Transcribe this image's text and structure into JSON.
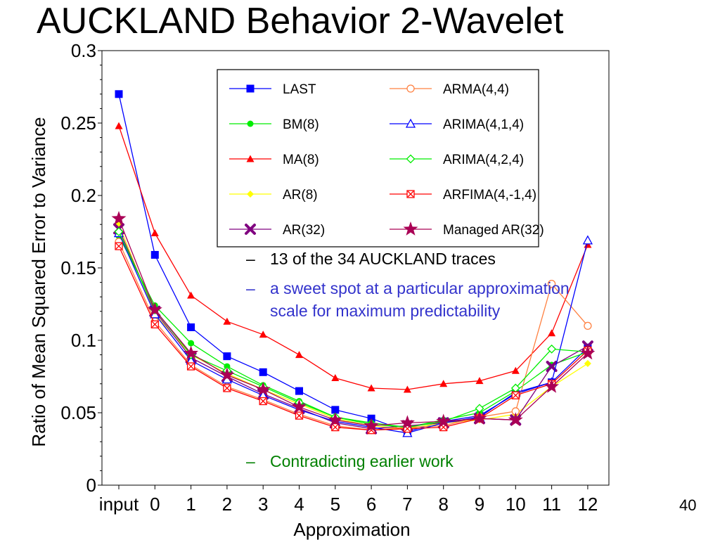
{
  "slide": {
    "title": "AUCKLAND Behavior 2-Wavelet",
    "page_number": "40",
    "bullets": [
      {
        "dash": "–",
        "text": "13 of the 34 AUCKLAND traces",
        "color": "#000000"
      },
      {
        "dash": "–",
        "text": "a sweet spot at a particular approximation scale for maximum predictability",
        "color": "#3333cc"
      },
      {
        "dash": "–",
        "text": "Contradicting earlier work",
        "color": "#008000"
      }
    ]
  },
  "chart_data": {
    "type": "line",
    "xlabel": "Approximation",
    "ylabel": "Ratio of Mean Squared Error to Variance",
    "categories": [
      "input",
      "0",
      "1",
      "2",
      "3",
      "4",
      "5",
      "6",
      "7",
      "8",
      "9",
      "10",
      "11",
      "12"
    ],
    "ylim": [
      0,
      0.3
    ],
    "yticks": [
      "0",
      "0.05",
      "0.1",
      "0.15",
      "0.2",
      "0.25",
      "0.3"
    ],
    "grid": false,
    "legend_position": "top-right",
    "series": [
      {
        "name": "LAST",
        "color": "#0000ff",
        "marker": "square-filled",
        "values": [
          0.27,
          0.159,
          0.109,
          0.089,
          0.078,
          0.065,
          0.052,
          0.046,
          0.037,
          0.044,
          0.048,
          0.063,
          0.071,
          0.095
        ]
      },
      {
        "name": "BM(8)",
        "color": "#00ee00",
        "marker": "circle-filled",
        "values": [
          0.172,
          0.124,
          0.098,
          0.082,
          0.069,
          0.058,
          0.047,
          0.043,
          0.04,
          0.045,
          0.05,
          0.065,
          0.083,
          0.092
        ]
      },
      {
        "name": "MA(8)",
        "color": "#ff0000",
        "marker": "triangle-filled",
        "values": [
          0.248,
          0.174,
          0.131,
          0.113,
          0.104,
          0.09,
          0.074,
          0.067,
          0.066,
          0.07,
          0.072,
          0.079,
          0.105,
          0.166
        ]
      },
      {
        "name": "AR(8)",
        "color": "#ffff00",
        "marker": "diamond-filled",
        "values": [
          0.18,
          0.118,
          0.09,
          0.077,
          0.066,
          0.056,
          0.046,
          0.041,
          0.039,
          0.043,
          0.045,
          0.049,
          0.068,
          0.084
        ]
      },
      {
        "name": "AR(32)",
        "color": "#800080",
        "marker": "x",
        "values": [
          0.177,
          0.12,
          0.088,
          0.075,
          0.063,
          0.053,
          0.043,
          0.039,
          0.041,
          0.043,
          0.046,
          0.045,
          0.082,
          0.096
        ]
      },
      {
        "name": "ARMA(4,4)",
        "color": "#ff8040",
        "marker": "circle-open",
        "values": [
          0.168,
          0.113,
          0.083,
          0.068,
          0.059,
          0.049,
          0.041,
          0.038,
          0.04,
          0.041,
          0.047,
          0.051,
          0.139,
          0.11
        ]
      },
      {
        "name": "ARIMA(4,1,4)",
        "color": "#0000ff",
        "marker": "triangle-open",
        "values": [
          0.174,
          0.118,
          0.086,
          0.073,
          0.062,
          0.052,
          0.044,
          0.04,
          0.036,
          0.043,
          0.047,
          0.064,
          0.071,
          0.169
        ]
      },
      {
        "name": "ARIMA(4,2,4)",
        "color": "#00ee00",
        "marker": "diamond-open",
        "values": [
          0.175,
          0.121,
          0.09,
          0.079,
          0.068,
          0.057,
          0.047,
          0.042,
          0.04,
          0.044,
          0.053,
          0.067,
          0.094,
          0.092
        ]
      },
      {
        "name": "ARFIMA(4,-1,4)",
        "color": "#ff0000",
        "marker": "boxed-x",
        "values": [
          0.165,
          0.111,
          0.082,
          0.067,
          0.058,
          0.048,
          0.04,
          0.038,
          0.039,
          0.04,
          0.046,
          0.062,
          0.07,
          0.093
        ]
      },
      {
        "name": "Managed AR(32)",
        "color": "#aa0055",
        "marker": "star",
        "values": [
          0.184,
          0.121,
          0.091,
          0.076,
          0.066,
          0.054,
          0.045,
          0.041,
          0.043,
          0.044,
          0.046,
          0.045,
          0.068,
          0.091
        ]
      }
    ]
  }
}
